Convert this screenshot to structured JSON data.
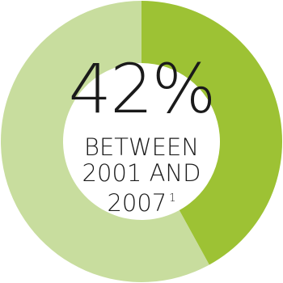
{
  "chart_data": {
    "type": "pie",
    "style": "donut",
    "slices": [
      {
        "value": 42,
        "color": "#9dc234"
      },
      {
        "value": 58,
        "color": "#c8dd9e"
      }
    ],
    "center_label": {
      "value": "42%",
      "lines": [
        "BETWEEN",
        "2001 AND",
        "2007"
      ],
      "footnote": "1"
    }
  },
  "colors": {
    "highlight": "#9dc234",
    "remainder": "#c8dd9e",
    "center": "#ffffff",
    "text": "#1a1a1a"
  }
}
